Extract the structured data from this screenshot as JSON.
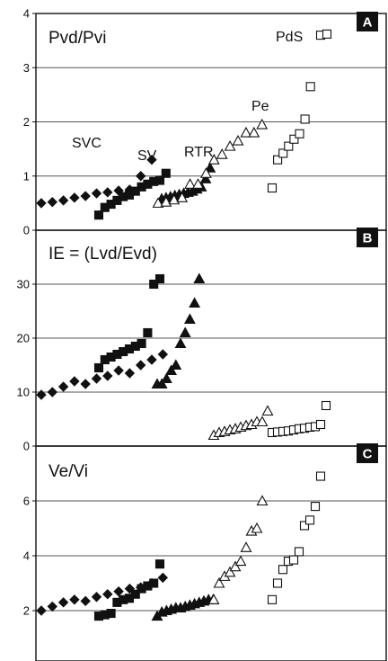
{
  "chart_data": [
    {
      "type": "scatter",
      "panel_letter": "A",
      "title": "Pvd/Pvi",
      "ylim": [
        0,
        4
      ],
      "yticks": [
        "0",
        "1",
        "2",
        "3",
        "4"
      ],
      "grid": true,
      "series": [
        {
          "name": "SVC",
          "marker": "diamond-filled",
          "values": [
            0.5,
            0.52,
            0.55,
            0.6,
            0.63,
            0.68,
            0.7,
            0.73,
            0.75,
            1.0,
            1.3
          ]
        },
        {
          "name": "SV",
          "marker": "square-filled",
          "values": [
            0.28,
            0.42,
            0.48,
            0.55,
            0.62,
            0.65,
            0.72,
            0.8,
            0.85,
            0.9,
            0.92,
            1.05
          ]
        },
        {
          "name": "RTR",
          "marker": "triangle-filled",
          "values": [
            0.58,
            0.6,
            0.62,
            0.64,
            0.66,
            0.68,
            0.7,
            0.72,
            0.76,
            0.8,
            0.95,
            1.15
          ]
        },
        {
          "name": "Pe",
          "marker": "triangle-open",
          "values": [
            0.5,
            0.52,
            0.56,
            0.6,
            0.85,
            0.85,
            1.05,
            1.3,
            1.4,
            1.55,
            1.65,
            1.8,
            1.8,
            1.95
          ]
        },
        {
          "name": "PdS",
          "marker": "square-open",
          "values": [
            0.78,
            1.3,
            1.42,
            1.55,
            1.68,
            1.78,
            2.05,
            2.65,
            3.6,
            3.62
          ]
        }
      ]
    },
    {
      "type": "scatter",
      "panel_letter": "B",
      "title": "IE = (Lvd/Evd)",
      "ylim": [
        0,
        40
      ],
      "yticks": [
        "0",
        "10",
        "20",
        "30"
      ],
      "grid": true,
      "series": [
        {
          "name": "SVC",
          "marker": "diamond-filled",
          "values": [
            9.5,
            10,
            11,
            12,
            11.5,
            12.5,
            13,
            14,
            13.5,
            15,
            16,
            17
          ]
        },
        {
          "name": "SV",
          "marker": "square-filled",
          "values": [
            14.5,
            16,
            16.5,
            17,
            17.5,
            18,
            18.5,
            19,
            21,
            30,
            31
          ]
        },
        {
          "name": "RTR",
          "marker": "triangle-filled",
          "values": [
            11.5,
            11.5,
            12.5,
            14,
            15,
            19,
            21,
            23.5,
            26.5,
            31
          ]
        },
        {
          "name": "Pe",
          "marker": "triangle-open",
          "values": [
            2,
            2.5,
            2.7,
            3,
            3.2,
            3.5,
            3.8,
            4,
            4.5,
            4.5,
            6.5
          ]
        },
        {
          "name": "PdS",
          "marker": "square-open",
          "values": [
            2.5,
            2.6,
            2.7,
            2.8,
            3,
            3.2,
            3.3,
            3.5,
            3.6,
            4,
            7.5
          ]
        }
      ]
    },
    {
      "type": "scatter",
      "panel_letter": "C",
      "title": "Ve/Vi",
      "ylim": [
        0,
        8
      ],
      "yticks": [
        "0",
        "2",
        "4",
        "6"
      ],
      "grid": true,
      "series": [
        {
          "name": "SVC",
          "marker": "diamond-filled",
          "values": [
            2.0,
            2.15,
            2.3,
            2.4,
            2.35,
            2.5,
            2.6,
            2.7,
            2.8,
            2.85,
            3.0,
            3.2
          ]
        },
        {
          "name": "SV",
          "marker": "square-filled",
          "values": [
            1.8,
            1.85,
            1.9,
            2.3,
            2.4,
            2.45,
            2.6,
            2.8,
            2.9,
            3.0,
            3.7
          ]
        },
        {
          "name": "RTR",
          "marker": "triangle-filled",
          "values": [
            1.8,
            1.95,
            2.0,
            2.05,
            2.1,
            2.1,
            2.15,
            2.2,
            2.25,
            2.3,
            2.35,
            2.4,
            2.4
          ]
        },
        {
          "name": "Pe",
          "marker": "triangle-open",
          "values": [
            2.4,
            3.0,
            3.25,
            3.4,
            3.6,
            3.8,
            4.3,
            4.9,
            5.0,
            6.0
          ]
        },
        {
          "name": "PdS",
          "marker": "square-open",
          "values": [
            2.4,
            3.0,
            3.5,
            3.8,
            3.85,
            4.15,
            5.1,
            5.3,
            5.8,
            6.9
          ]
        }
      ]
    }
  ]
}
